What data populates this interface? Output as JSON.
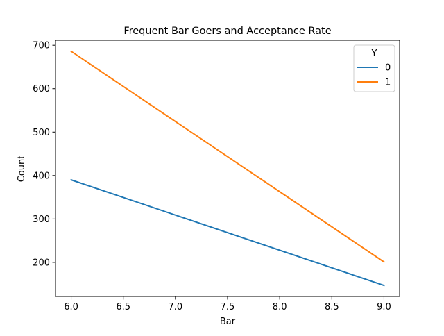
{
  "chart_data": {
    "type": "line",
    "title": "Frequent Bar Goers and Acceptance Rate",
    "xlabel": "Bar",
    "ylabel": "Count",
    "xlim": [
      5.85,
      9.15
    ],
    "ylim": [
      121.5,
      711.5
    ],
    "xticks": [
      6.0,
      6.5,
      7.0,
      7.5,
      8.0,
      8.5,
      9.0
    ],
    "xtick_labels": [
      "6.0",
      "6.5",
      "7.0",
      "7.5",
      "8.0",
      "8.5",
      "9.0"
    ],
    "yticks": [
      200,
      300,
      400,
      500,
      600,
      700
    ],
    "ytick_labels": [
      "200",
      "300",
      "400",
      "500",
      "600",
      "700"
    ],
    "grid": false,
    "legend": {
      "title": "Y",
      "position": "top-right"
    },
    "series": [
      {
        "name": "0",
        "color": "#1f77b4",
        "x": [
          6.0,
          9.0
        ],
        "y": [
          390,
          147
        ]
      },
      {
        "name": "1",
        "color": "#ff7f0e",
        "x": [
          6.0,
          9.0
        ],
        "y": [
          686,
          201
        ]
      }
    ]
  }
}
